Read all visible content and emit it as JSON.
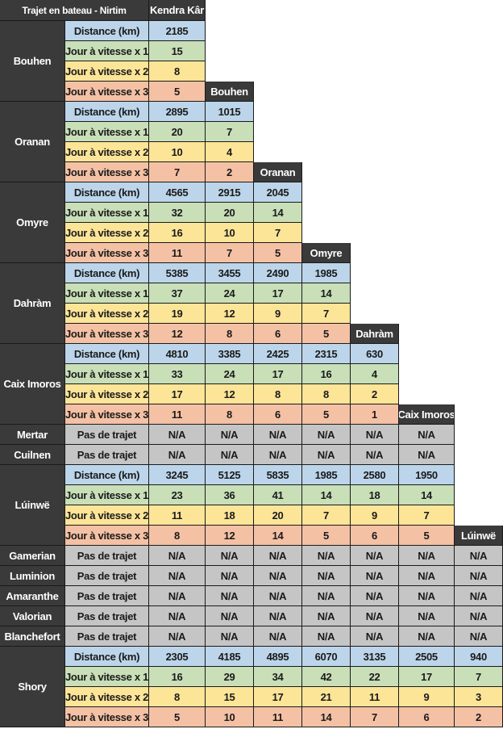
{
  "table_title": "Trajet en bateau - Nirtim",
  "column_headers": [
    "Kendra Kâr",
    "Bouhen",
    "Oranan",
    "Omyre",
    "Dahràm",
    "Caix Imoros",
    "Lúinwë"
  ],
  "row_labels": {
    "distance": "Distance (km)",
    "speed1": "Jour à vitesse x 1",
    "speed2": "Jour à vitesse x 2",
    "speed3": "Jour à vitesse x 3",
    "no_route": "Pas de trajet"
  },
  "colors": {
    "header_bg": "#3a3a3a",
    "distance_bg": "#bcd5ea",
    "speed1_bg": "#c8dfb8",
    "speed2_bg": "#fde598",
    "speed3_bg": "#f4c1a5",
    "na_bg": "#c5c5c5"
  },
  "groups": [
    {
      "name": "Bouhen",
      "type": "data",
      "distance": [
        "2185"
      ],
      "speed1": [
        "15"
      ],
      "speed2": [
        "8"
      ],
      "speed3": [
        "5"
      ]
    },
    {
      "name": "Oranan",
      "type": "data",
      "distance": [
        "2895",
        "1015"
      ],
      "speed1": [
        "20",
        "7"
      ],
      "speed2": [
        "10",
        "4"
      ],
      "speed3": [
        "7",
        "2"
      ]
    },
    {
      "name": "Omyre",
      "type": "data",
      "distance": [
        "4565",
        "2915",
        "2045"
      ],
      "speed1": [
        "32",
        "20",
        "14"
      ],
      "speed2": [
        "16",
        "10",
        "7"
      ],
      "speed3": [
        "11",
        "7",
        "5"
      ]
    },
    {
      "name": "Dahràm",
      "type": "data",
      "distance": [
        "5385",
        "3455",
        "2490",
        "1985"
      ],
      "speed1": [
        "37",
        "24",
        "17",
        "14"
      ],
      "speed2": [
        "19",
        "12",
        "9",
        "7"
      ],
      "speed3": [
        "12",
        "8",
        "6",
        "5"
      ]
    },
    {
      "name": "Caix Imoros",
      "type": "data",
      "distance": [
        "4810",
        "3385",
        "2425",
        "2315",
        "630"
      ],
      "speed1": [
        "33",
        "24",
        "17",
        "16",
        "4"
      ],
      "speed2": [
        "17",
        "12",
        "8",
        "8",
        "2"
      ],
      "speed3": [
        "11",
        "8",
        "6",
        "5",
        "1"
      ]
    },
    {
      "name": "Mertar",
      "type": "na",
      "values": [
        "N/A",
        "N/A",
        "N/A",
        "N/A",
        "N/A",
        "N/A"
      ]
    },
    {
      "name": "Cuilnen",
      "type": "na",
      "values": [
        "N/A",
        "N/A",
        "N/A",
        "N/A",
        "N/A",
        "N/A"
      ]
    },
    {
      "name": "Lúinwë",
      "type": "data",
      "distance": [
        "3245",
        "5125",
        "5835",
        "1985",
        "2580",
        "1950"
      ],
      "speed1": [
        "23",
        "36",
        "41",
        "14",
        "18",
        "14"
      ],
      "speed2": [
        "11",
        "18",
        "20",
        "7",
        "9",
        "7"
      ],
      "speed3": [
        "8",
        "12",
        "14",
        "5",
        "6",
        "5"
      ]
    },
    {
      "name": "Gamerian",
      "type": "na",
      "values": [
        "N/A",
        "N/A",
        "N/A",
        "N/A",
        "N/A",
        "N/A",
        "N/A"
      ]
    },
    {
      "name": "Luminion",
      "type": "na",
      "values": [
        "N/A",
        "N/A",
        "N/A",
        "N/A",
        "N/A",
        "N/A",
        "N/A"
      ]
    },
    {
      "name": "Amaranthe",
      "type": "na",
      "values": [
        "N/A",
        "N/A",
        "N/A",
        "N/A",
        "N/A",
        "N/A",
        "N/A"
      ]
    },
    {
      "name": "Valorian",
      "type": "na",
      "values": [
        "N/A",
        "N/A",
        "N/A",
        "N/A",
        "N/A",
        "N/A",
        "N/A"
      ]
    },
    {
      "name": "Blanchefort",
      "type": "na",
      "values": [
        "N/A",
        "N/A",
        "N/A",
        "N/A",
        "N/A",
        "N/A",
        "N/A"
      ]
    },
    {
      "name": "Shory",
      "type": "data",
      "distance": [
        "2305",
        "4185",
        "4895",
        "6070",
        "3135",
        "2505",
        "940"
      ],
      "speed1": [
        "16",
        "29",
        "34",
        "42",
        "22",
        "17",
        "7"
      ],
      "speed2": [
        "8",
        "15",
        "17",
        "21",
        "11",
        "9",
        "3"
      ],
      "speed3": [
        "5",
        "10",
        "11",
        "14",
        "7",
        "6",
        "2"
      ]
    }
  ]
}
